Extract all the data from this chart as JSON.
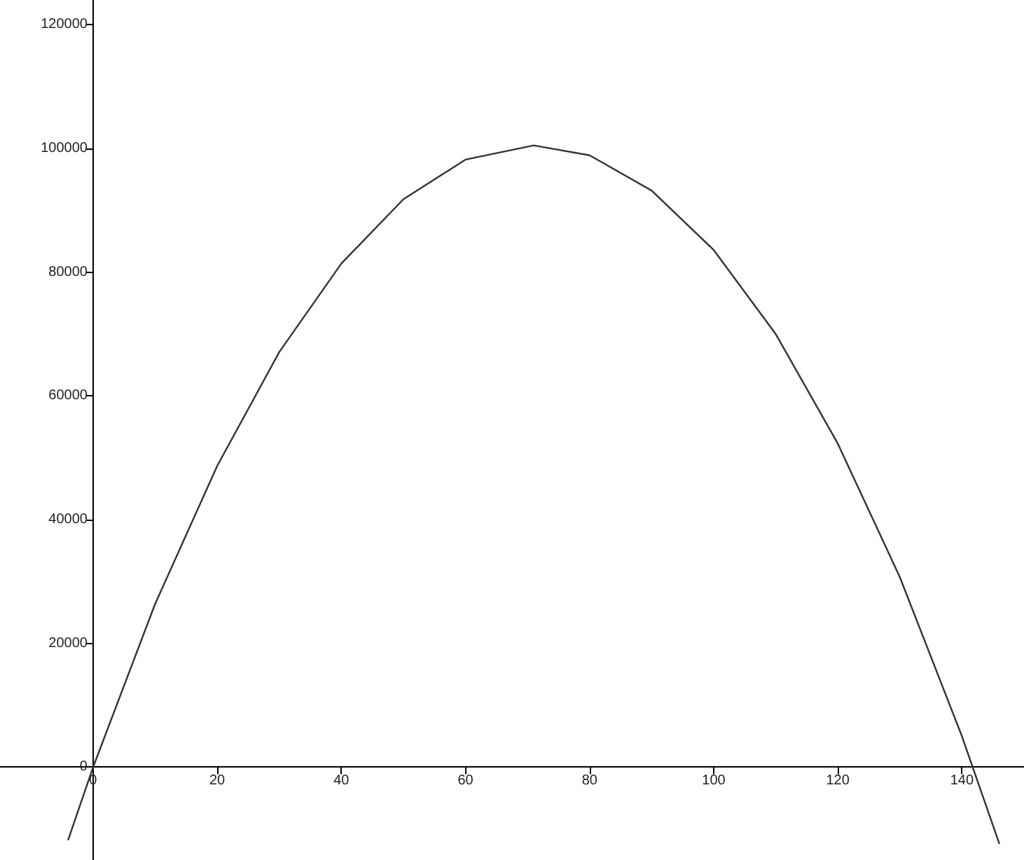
{
  "chart_data": {
    "type": "line",
    "x": [
      -4,
      0,
      10,
      20,
      30,
      40,
      50,
      60,
      71,
      80,
      90,
      100,
      110,
      120,
      130,
      140,
      146
    ],
    "series": [
      {
        "color": "#333333",
        "values": [
          -11700,
          0,
          26400,
          48700,
          67100,
          81400,
          91800,
          98200,
          100500,
          98900,
          93200,
          83600,
          70000,
          52300,
          30700,
          5000,
          -12300
        ]
      }
    ],
    "xlim": [
      -15,
      150
    ],
    "xticks": [
      0,
      20,
      40,
      60,
      80,
      100,
      120,
      140
    ],
    "ylim": [
      -15000,
      124000
    ],
    "yticks": [
      0,
      20000,
      40000,
      60000,
      80000,
      100000,
      120000
    ],
    "marker": "none",
    "line_style": "solid"
  }
}
